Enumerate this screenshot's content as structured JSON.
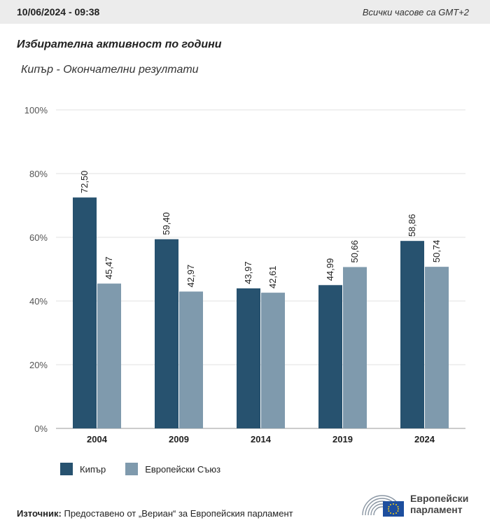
{
  "header": {
    "datetime": "10/06/2024 - 09:38",
    "timezone_note": "Всички часове са GMT+2"
  },
  "title": "Избирателна активност по години",
  "subtitle": "Кипър - Окончателни резултати",
  "chart_data": {
    "type": "bar",
    "categories": [
      "2004",
      "2009",
      "2014",
      "2019",
      "2024"
    ],
    "series": [
      {
        "name": "Кипър",
        "color": "#27526f",
        "values": [
          72.5,
          59.4,
          43.97,
          44.99,
          58.86
        ],
        "labels": [
          "72,50",
          "59,40",
          "43,97",
          "44,99",
          "58,86"
        ]
      },
      {
        "name": "Европейски Съюз",
        "color": "#7f9aad",
        "values": [
          45.47,
          42.97,
          42.61,
          50.66,
          50.74
        ],
        "labels": [
          "45,47",
          "42,97",
          "42,61",
          "50,66",
          "50,74"
        ]
      }
    ],
    "ylim": [
      0,
      100
    ],
    "yticks": [
      0,
      20,
      40,
      60,
      80,
      100
    ],
    "ytick_labels": [
      "0%",
      "20%",
      "40%",
      "60%",
      "80%",
      "100%"
    ],
    "grid": true,
    "legend": "bottom-left"
  },
  "footer": {
    "source_label": "Източник:",
    "source_text": "Предоставено от „Вериан“ за Европейския парламент"
  },
  "logo": {
    "line1": "Европейски",
    "line2": "парламент"
  }
}
